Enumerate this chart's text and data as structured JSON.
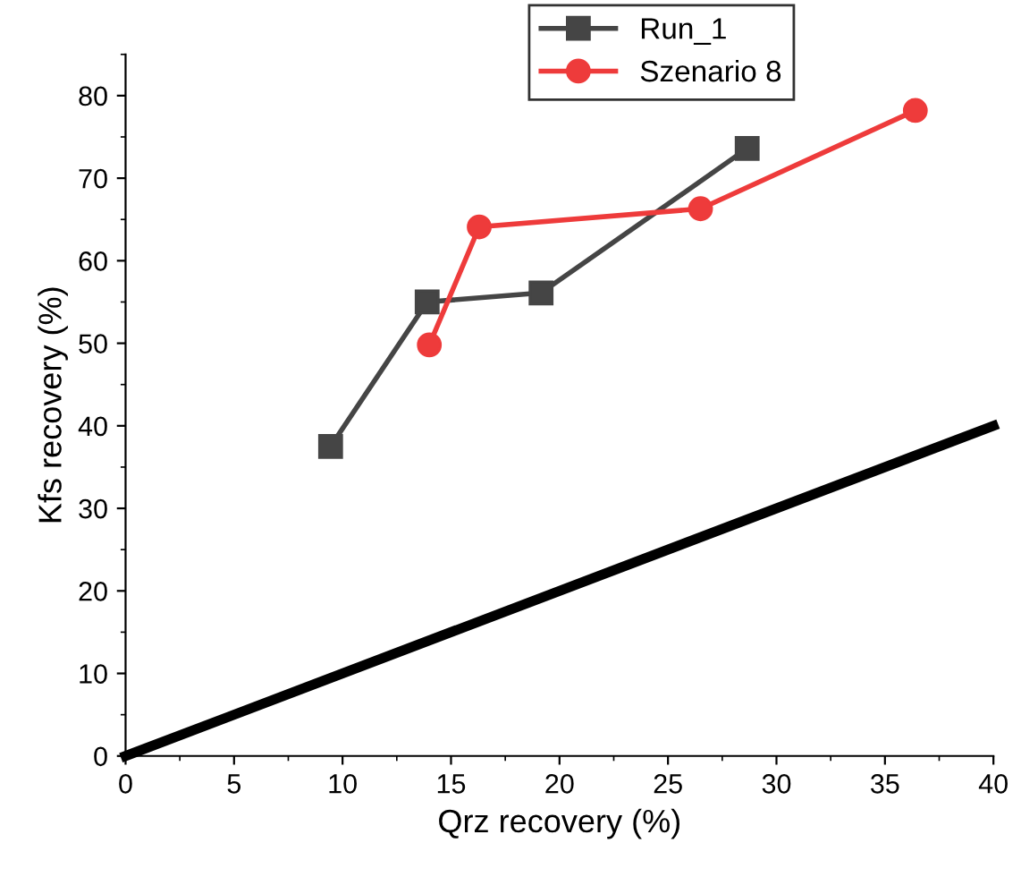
{
  "chart_data": {
    "type": "line",
    "xlabel": "Qrz recovery (%)",
    "ylabel": "Kfs recovery (%)",
    "xlim": [
      0,
      40
    ],
    "ylim": [
      0,
      85
    ],
    "xticks": [
      0,
      5,
      10,
      15,
      20,
      25,
      30,
      35,
      40
    ],
    "yticks": [
      0,
      10,
      20,
      30,
      40,
      50,
      60,
      70,
      80
    ],
    "legend": "top right",
    "grid": false,
    "series": [
      {
        "name": "Run_1",
        "color": "#454545",
        "marker": "square",
        "x": [
          9.45,
          13.9,
          19.15,
          28.65
        ],
        "values": [
          37.5,
          55.0,
          56.1,
          73.6
        ]
      },
      {
        "name": "Szenario 8",
        "color": "#ee3b3b",
        "marker": "circle",
        "x": [
          14.0,
          16.3,
          26.5,
          36.4
        ],
        "values": [
          49.8,
          64.1,
          66.3,
          78.2
        ]
      },
      {
        "color": "#000000",
        "marker": "none",
        "x": [
          0,
          40
        ],
        "values": [
          0,
          40
        ]
      }
    ]
  }
}
